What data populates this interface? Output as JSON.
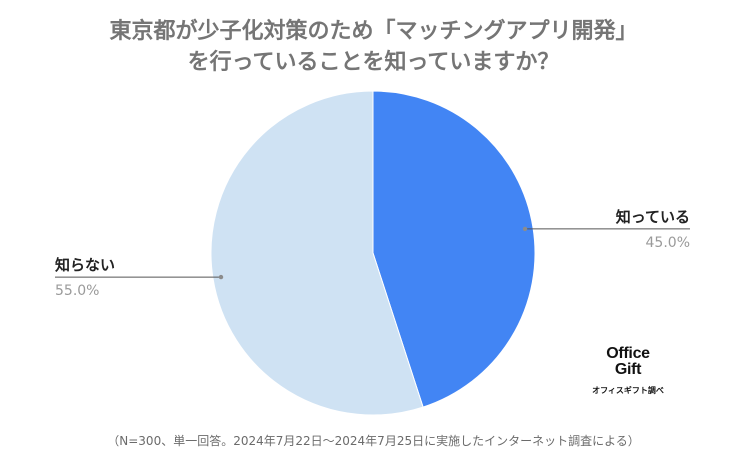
{
  "chart_data": {
    "type": "pie",
    "title_line1": "東京都が少子化対策のため「マッチングアプリ開発」",
    "title_line2": "を行っていることを知っていますか？",
    "categories": [
      "知っている",
      "知らない"
    ],
    "values": [
      45.0,
      55.0
    ],
    "value_labels": [
      "45.0%",
      "55.0%"
    ],
    "colors": [
      "#4285f4",
      "#cfe2f3"
    ],
    "start_angle": "12 o'clock, clockwise",
    "label_style": "leader lines, outside"
  },
  "logo": {
    "line1": "Office",
    "line2": "Gift",
    "caption": "オフィスギフト調べ"
  },
  "footnote": "（N=300、単一回答。2024年7月22日〜2024年7月25日に実施したインターネット調査による）"
}
